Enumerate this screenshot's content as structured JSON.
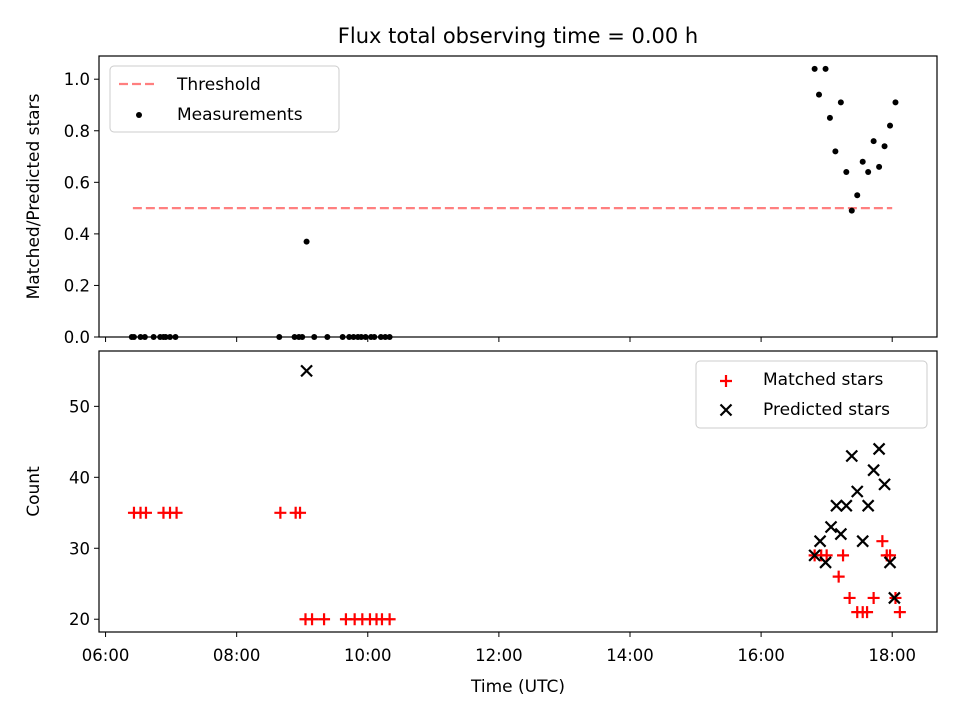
{
  "figure_title": "Flux total observing time = 0.00 h",
  "chart_data": [
    {
      "type": "scatter",
      "panel": "top",
      "title": "Flux total observing time = 0.00 h",
      "xlabel": "",
      "ylabel": "Matched/Predicted stars",
      "xlim": [
        "05:54",
        "18:41"
      ],
      "ylim": [
        0,
        1.09
      ],
      "yticks": [
        0.0,
        0.2,
        0.4,
        0.6,
        0.8,
        1.0
      ],
      "ytick_labels": [
        "0.0",
        "0.2",
        "0.4",
        "0.6",
        "0.8",
        "1.0"
      ],
      "grid": false,
      "legend_placement": "top-left",
      "threshold": {
        "name": "Threshold",
        "value": 0.5,
        "x_range": [
          "06:25",
          "18:00"
        ],
        "color": "#ff7f7f",
        "style": "dashed"
      },
      "series": [
        {
          "name": "Measurements",
          "color": "#000000",
          "marker": "dot",
          "x": [
            "06:24",
            "06:26",
            "06:32",
            "06:36",
            "06:44",
            "06:50",
            "06:53",
            "06:55",
            "06:59",
            "07:04",
            "08:39",
            "08:53",
            "08:57",
            "09:00",
            "09:04",
            "09:11",
            "09:23",
            "09:37",
            "09:43",
            "09:47",
            "09:51",
            "09:54",
            "09:58",
            "10:03",
            "10:06",
            "10:12",
            "10:16",
            "10:20",
            "16:49",
            "16:53",
            "16:59",
            "17:03",
            "17:08",
            "17:13",
            "17:18",
            "17:23",
            "17:28",
            "17:33",
            "17:38",
            "17:43",
            "17:48",
            "17:53",
            "17:58",
            "18:03"
          ],
          "y": [
            0,
            0,
            0,
            0,
            0,
            0,
            0,
            0,
            0,
            0,
            0,
            0,
            0,
            0,
            0.37,
            0,
            0,
            0,
            0,
            0,
            0,
            0,
            0,
            0,
            0,
            0,
            0,
            0,
            1.04,
            0.94,
            1.04,
            0.85,
            0.72,
            0.91,
            0.64,
            0.49,
            0.55,
            0.68,
            0.64,
            0.76,
            0.66,
            0.74,
            0.82,
            0.91
          ]
        }
      ]
    },
    {
      "type": "scatter",
      "panel": "bottom",
      "title": "",
      "xlabel": "Time (UTC)",
      "ylabel": "Count",
      "xlim": [
        "05:54",
        "18:41"
      ],
      "ylim": [
        18.2,
        57.8
      ],
      "xticks": [
        "06:00",
        "08:00",
        "10:00",
        "12:00",
        "14:00",
        "16:00",
        "18:00"
      ],
      "yticks": [
        20,
        30,
        40,
        50
      ],
      "grid": false,
      "legend_placement": "top-right",
      "series": [
        {
          "name": "Matched stars",
          "color": "#ff0000",
          "marker": "plus",
          "x": [
            "06:26",
            "06:32",
            "06:37",
            "06:53",
            "06:59",
            "07:05",
            "08:40",
            "08:54",
            "08:58",
            "09:03",
            "09:09",
            "09:20",
            "09:40",
            "09:48",
            "09:55",
            "10:02",
            "10:08",
            "10:13",
            "10:20",
            "16:49",
            "16:55",
            "17:00",
            "17:11",
            "17:15",
            "17:21",
            "17:28",
            "17:33",
            "17:37",
            "17:43",
            "17:51",
            "17:55",
            "17:58",
            "18:03",
            "18:07"
          ],
          "y": [
            35,
            35,
            35,
            35,
            35,
            35,
            35,
            35,
            35,
            20,
            20,
            20,
            20,
            20,
            20,
            20,
            20,
            20,
            20,
            29,
            29,
            29,
            26,
            29,
            23,
            21,
            21,
            21,
            23,
            31,
            29,
            29,
            23,
            21
          ]
        },
        {
          "name": "Predicted stars",
          "color": "#000000",
          "marker": "x",
          "x": [
            "09:04",
            "16:49",
            "16:54",
            "16:59",
            "17:04",
            "17:09",
            "17:13",
            "17:18",
            "17:23",
            "17:28",
            "17:33",
            "17:38",
            "17:43",
            "17:48",
            "17:53",
            "17:58",
            "18:02"
          ],
          "y": [
            55,
            29,
            31,
            28,
            33,
            36,
            32,
            36,
            43,
            38,
            31,
            36,
            41,
            44,
            39,
            28,
            23
          ]
        }
      ]
    }
  ]
}
